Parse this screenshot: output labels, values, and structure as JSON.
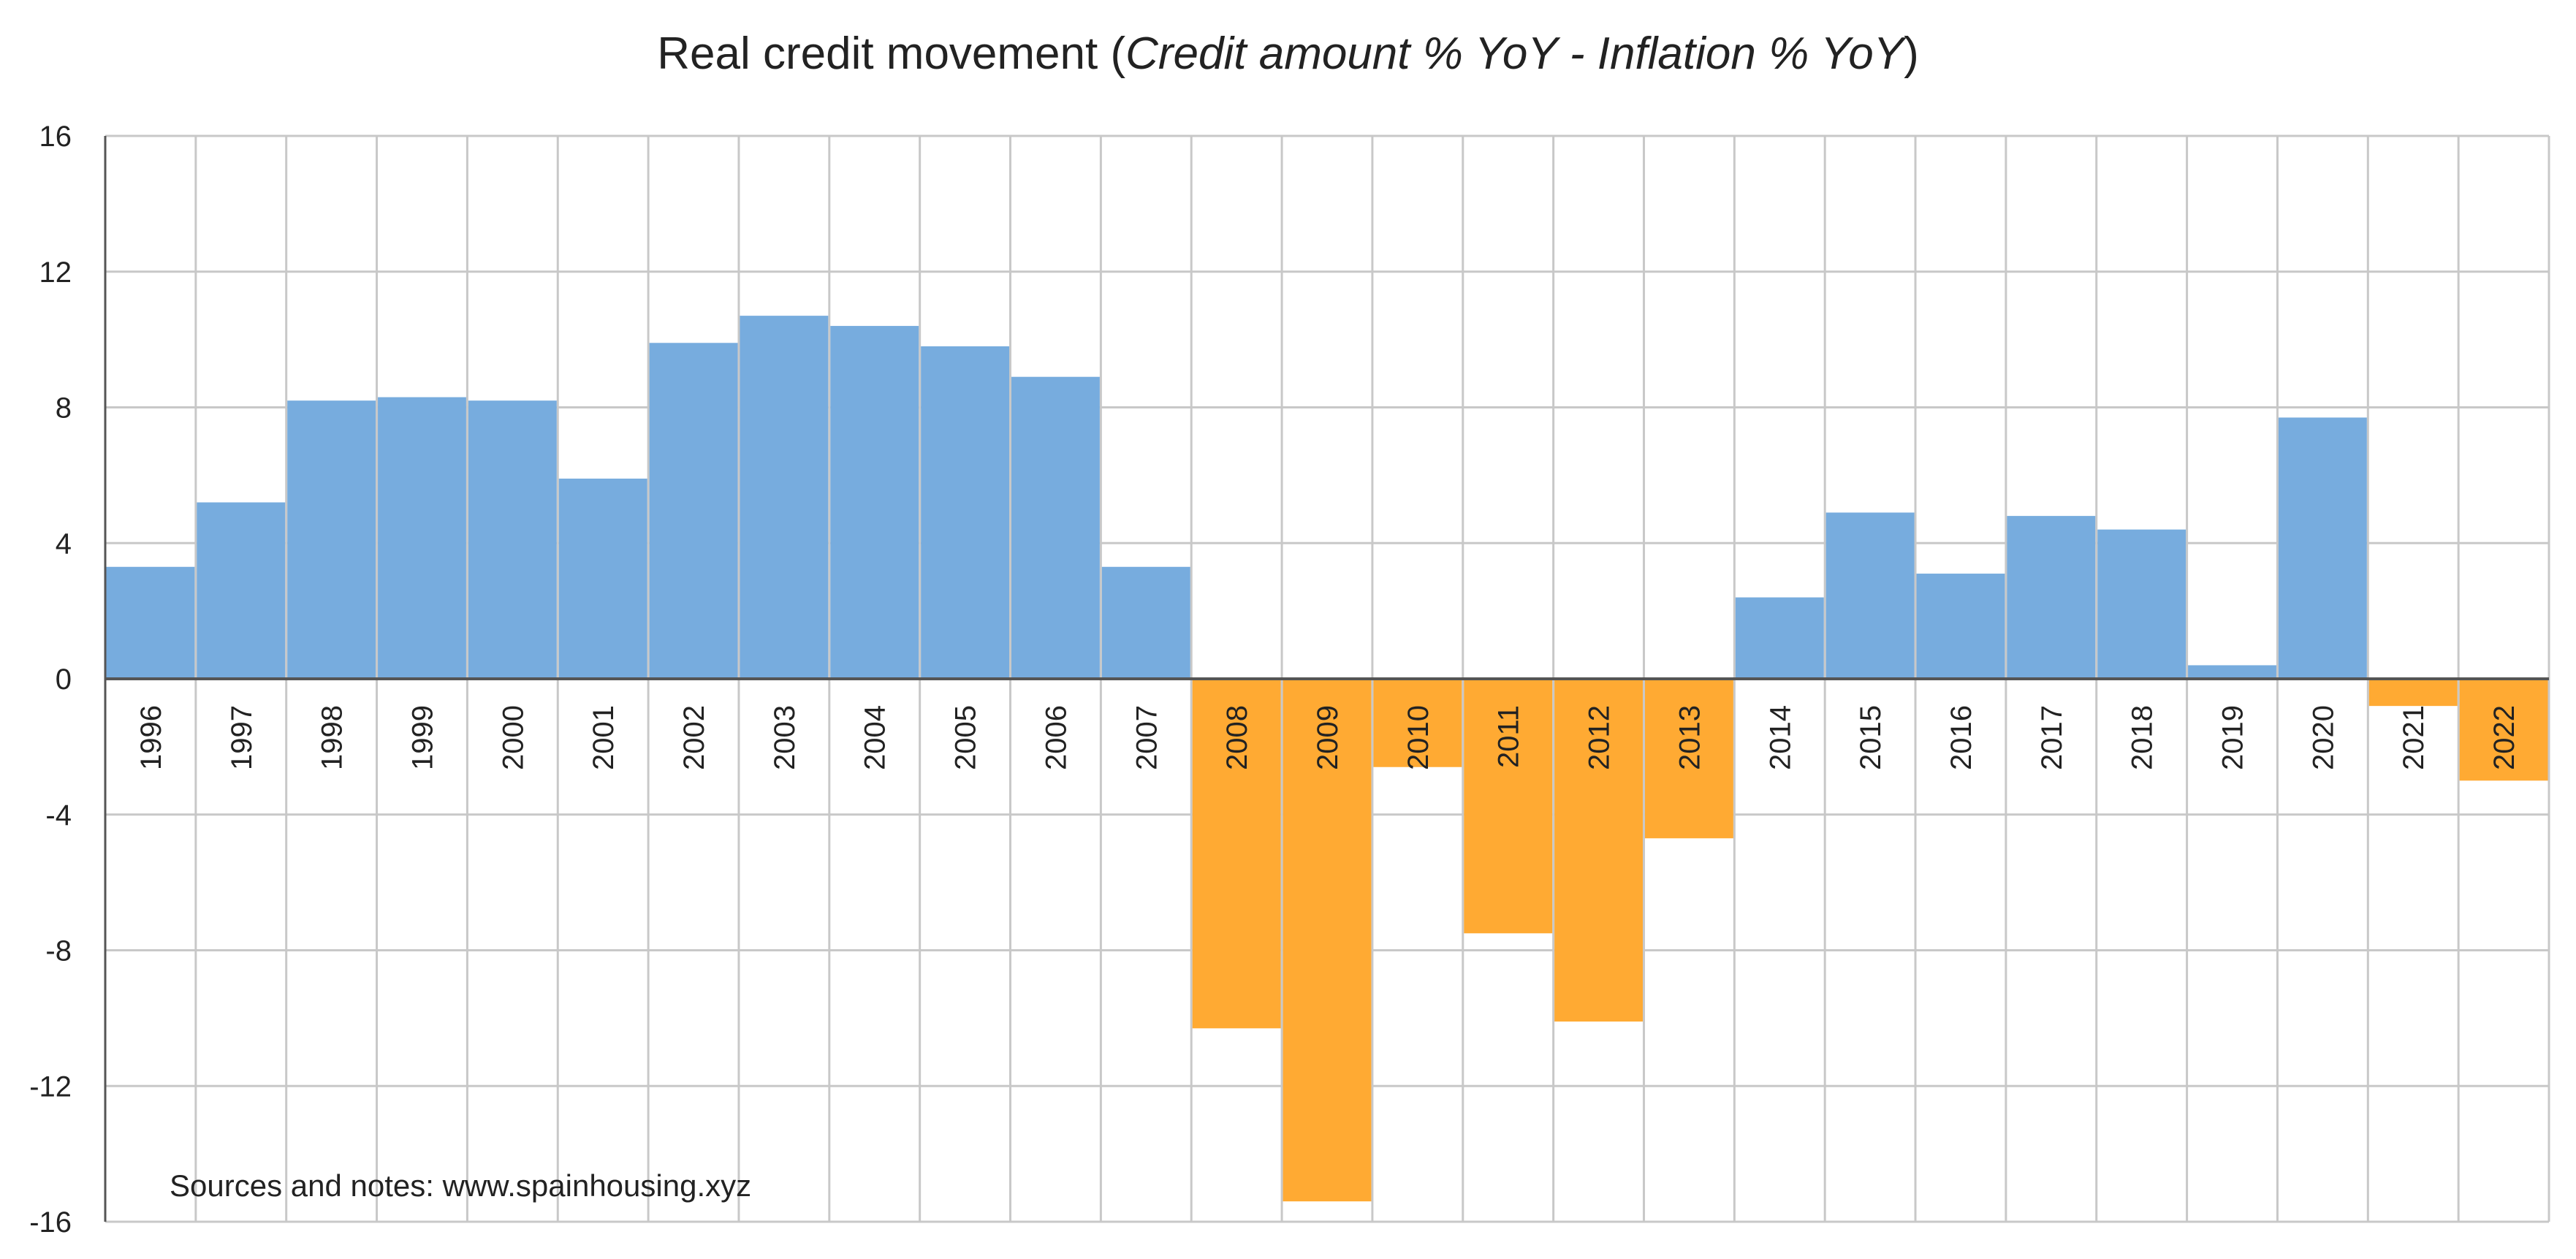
{
  "chart_data": {
    "type": "bar",
    "title": {
      "prefix": "Real credit movement (",
      "italic": "Credit amount % YoY - Inflation % YoY",
      "suffix": ")"
    },
    "categories": [
      "1996",
      "1997",
      "1998",
      "1999",
      "2000",
      "2001",
      "2002",
      "2003",
      "2004",
      "2005",
      "2006",
      "2007",
      "2008",
      "2009",
      "2010",
      "2011",
      "2012",
      "2013",
      "2014",
      "2015",
      "2016",
      "2017",
      "2018",
      "2019",
      "2020",
      "2021",
      "2022"
    ],
    "values": [
      3.3,
      5.2,
      8.2,
      8.3,
      8.2,
      5.9,
      9.9,
      10.7,
      10.4,
      9.8,
      8.9,
      3.3,
      -10.3,
      -15.4,
      -2.6,
      -7.5,
      -10.1,
      -4.7,
      2.4,
      4.9,
      3.1,
      4.8,
      4.4,
      0.4,
      7.7,
      -0.8,
      -3.0
    ],
    "ylim": [
      -16,
      16
    ],
    "yticks": [
      16,
      12,
      8,
      4,
      0,
      -4,
      -8,
      -12,
      -16
    ],
    "grid": true,
    "colors": {
      "positive": "#77ACDE",
      "negative": "#FFAA33"
    },
    "annotation": "Sources and notes: www.spainhousing.xyz"
  }
}
